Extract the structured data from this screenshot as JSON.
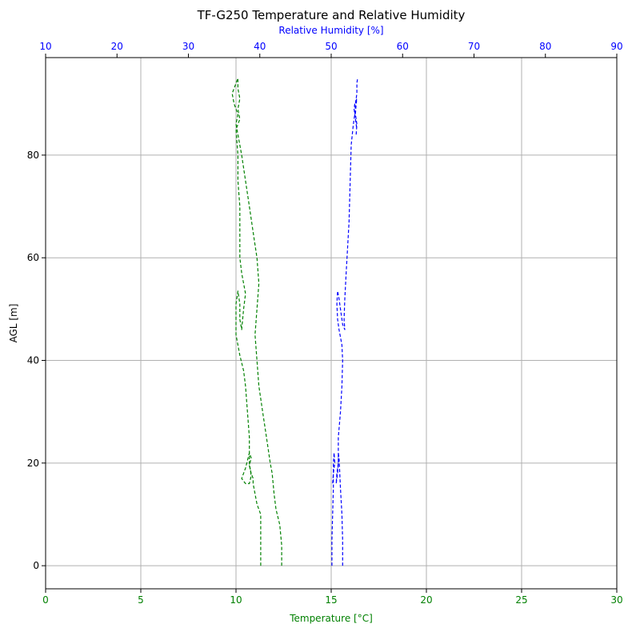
{
  "chart_data": {
    "type": "line",
    "title": "TF-G250 Temperature and Relative Humidity",
    "xlabel": "Temperature [°C]",
    "x2label": "Relative Humidity [%]",
    "ylabel": "AGL [m]",
    "xlim": [
      0,
      30
    ],
    "x2lim": [
      10,
      90
    ],
    "ylim": [
      -4.5,
      99
    ],
    "xticks": [
      0,
      5,
      10,
      15,
      20,
      25,
      30
    ],
    "x2ticks": [
      10,
      20,
      30,
      40,
      50,
      60,
      70,
      80,
      90
    ],
    "yticks": [
      0,
      20,
      40,
      60,
      80
    ],
    "grid": true,
    "colors": {
      "temperature": "#008000",
      "humidity": "#0000ff",
      "grid": "#b0b0b0",
      "axis": "#000000"
    },
    "series": [
      {
        "axis": "bottom",
        "color": "#008000",
        "points": [
          [
            11.3,
            0
          ],
          [
            11.3,
            5
          ],
          [
            11.3,
            10
          ],
          [
            11.1,
            12
          ],
          [
            11.0,
            14
          ],
          [
            10.9,
            16
          ],
          [
            10.9,
            17
          ],
          [
            10.8,
            18
          ],
          [
            10.7,
            19.5
          ],
          [
            10.8,
            21
          ],
          [
            10.7,
            22
          ],
          [
            10.6,
            20.5
          ],
          [
            10.5,
            19
          ],
          [
            10.3,
            17
          ],
          [
            10.5,
            16
          ],
          [
            10.7,
            16
          ],
          [
            10.8,
            17.5
          ],
          [
            10.7,
            20
          ],
          [
            10.7,
            25
          ],
          [
            10.6,
            30
          ],
          [
            10.5,
            35
          ],
          [
            10.4,
            38
          ],
          [
            10.2,
            41
          ],
          [
            10.1,
            43
          ],
          [
            10.0,
            45
          ],
          [
            10.0,
            48
          ],
          [
            10.0,
            51
          ],
          [
            10.1,
            53.5
          ],
          [
            10.2,
            51
          ],
          [
            10.2,
            48
          ],
          [
            10.3,
            46
          ],
          [
            10.4,
            50
          ],
          [
            10.5,
            53
          ],
          [
            10.3,
            57
          ],
          [
            10.2,
            60
          ],
          [
            10.2,
            65
          ],
          [
            10.2,
            70
          ],
          [
            10.1,
            75
          ],
          [
            10.1,
            80
          ],
          [
            10.0,
            85
          ],
          [
            10.2,
            87
          ],
          [
            10.1,
            89
          ],
          [
            10.2,
            91
          ],
          [
            10.1,
            93
          ],
          [
            10.1,
            95
          ]
        ]
      },
      {
        "axis": "bottom",
        "color": "#008000",
        "points": [
          [
            12.4,
            0
          ],
          [
            12.4,
            4
          ],
          [
            12.3,
            8
          ],
          [
            12.1,
            11
          ],
          [
            12.0,
            14
          ],
          [
            11.9,
            18
          ],
          [
            11.8,
            20
          ],
          [
            11.6,
            25
          ],
          [
            11.4,
            30
          ],
          [
            11.2,
            35
          ],
          [
            11.1,
            40
          ],
          [
            11.0,
            45
          ],
          [
            11.1,
            50
          ],
          [
            11.2,
            55
          ],
          [
            11.1,
            60
          ],
          [
            10.9,
            65
          ],
          [
            10.7,
            70
          ],
          [
            10.5,
            75
          ],
          [
            10.3,
            80
          ],
          [
            10.1,
            84
          ],
          [
            10.0,
            86
          ],
          [
            10.1,
            88
          ],
          [
            9.9,
            90
          ],
          [
            9.8,
            92
          ],
          [
            9.9,
            93
          ],
          [
            10.0,
            94
          ],
          [
            10.1,
            95
          ]
        ]
      },
      {
        "axis": "top",
        "color": "#0000ff",
        "points": [
          [
            51.6,
            0
          ],
          [
            51.6,
            5
          ],
          [
            51.5,
            10
          ],
          [
            51.3,
            15
          ],
          [
            51.2,
            18
          ],
          [
            51.1,
            21
          ],
          [
            51.0,
            22
          ],
          [
            51.0,
            20
          ],
          [
            50.9,
            18
          ],
          [
            50.7,
            16
          ],
          [
            50.8,
            18
          ],
          [
            51.0,
            20
          ],
          [
            51.0,
            25
          ],
          [
            51.3,
            30
          ],
          [
            51.5,
            35
          ],
          [
            51.6,
            40
          ],
          [
            51.5,
            43
          ],
          [
            51.1,
            46
          ],
          [
            50.9,
            48
          ],
          [
            50.8,
            51
          ],
          [
            50.9,
            53.5
          ],
          [
            51.1,
            52
          ],
          [
            51.4,
            49
          ],
          [
            51.6,
            47
          ],
          [
            51.9,
            46
          ],
          [
            51.8,
            48
          ],
          [
            51.9,
            52
          ],
          [
            52.1,
            57
          ],
          [
            52.3,
            62
          ],
          [
            52.5,
            67
          ],
          [
            52.6,
            72
          ],
          [
            52.7,
            77
          ],
          [
            52.8,
            82
          ],
          [
            53.1,
            86
          ],
          [
            53.3,
            88
          ],
          [
            53.4,
            90
          ],
          [
            53.5,
            91
          ],
          [
            53.6,
            92
          ],
          [
            53.6,
            93
          ],
          [
            53.6,
            94
          ],
          [
            53.7,
            95
          ]
        ]
      },
      {
        "axis": "top",
        "color": "#0000ff",
        "points": [
          [
            50.1,
            0
          ],
          [
            50.1,
            5
          ],
          [
            50.2,
            10
          ],
          [
            50.3,
            15
          ],
          [
            50.3,
            20
          ],
          [
            50.4,
            22
          ],
          [
            50.5,
            20
          ],
          [
            50.3,
            18
          ],
          [
            50.2,
            16
          ]
        ]
      },
      {
        "axis": "top",
        "color": "#0000ff",
        "points": [
          [
            53.5,
            84
          ],
          [
            53.6,
            86
          ],
          [
            53.4,
            88
          ],
          [
            53.5,
            90
          ],
          [
            53.6,
            91
          ],
          [
            53.3,
            90
          ],
          [
            53.2,
            89
          ],
          [
            53.4,
            87
          ],
          [
            53.6,
            85
          ]
        ]
      }
    ]
  }
}
